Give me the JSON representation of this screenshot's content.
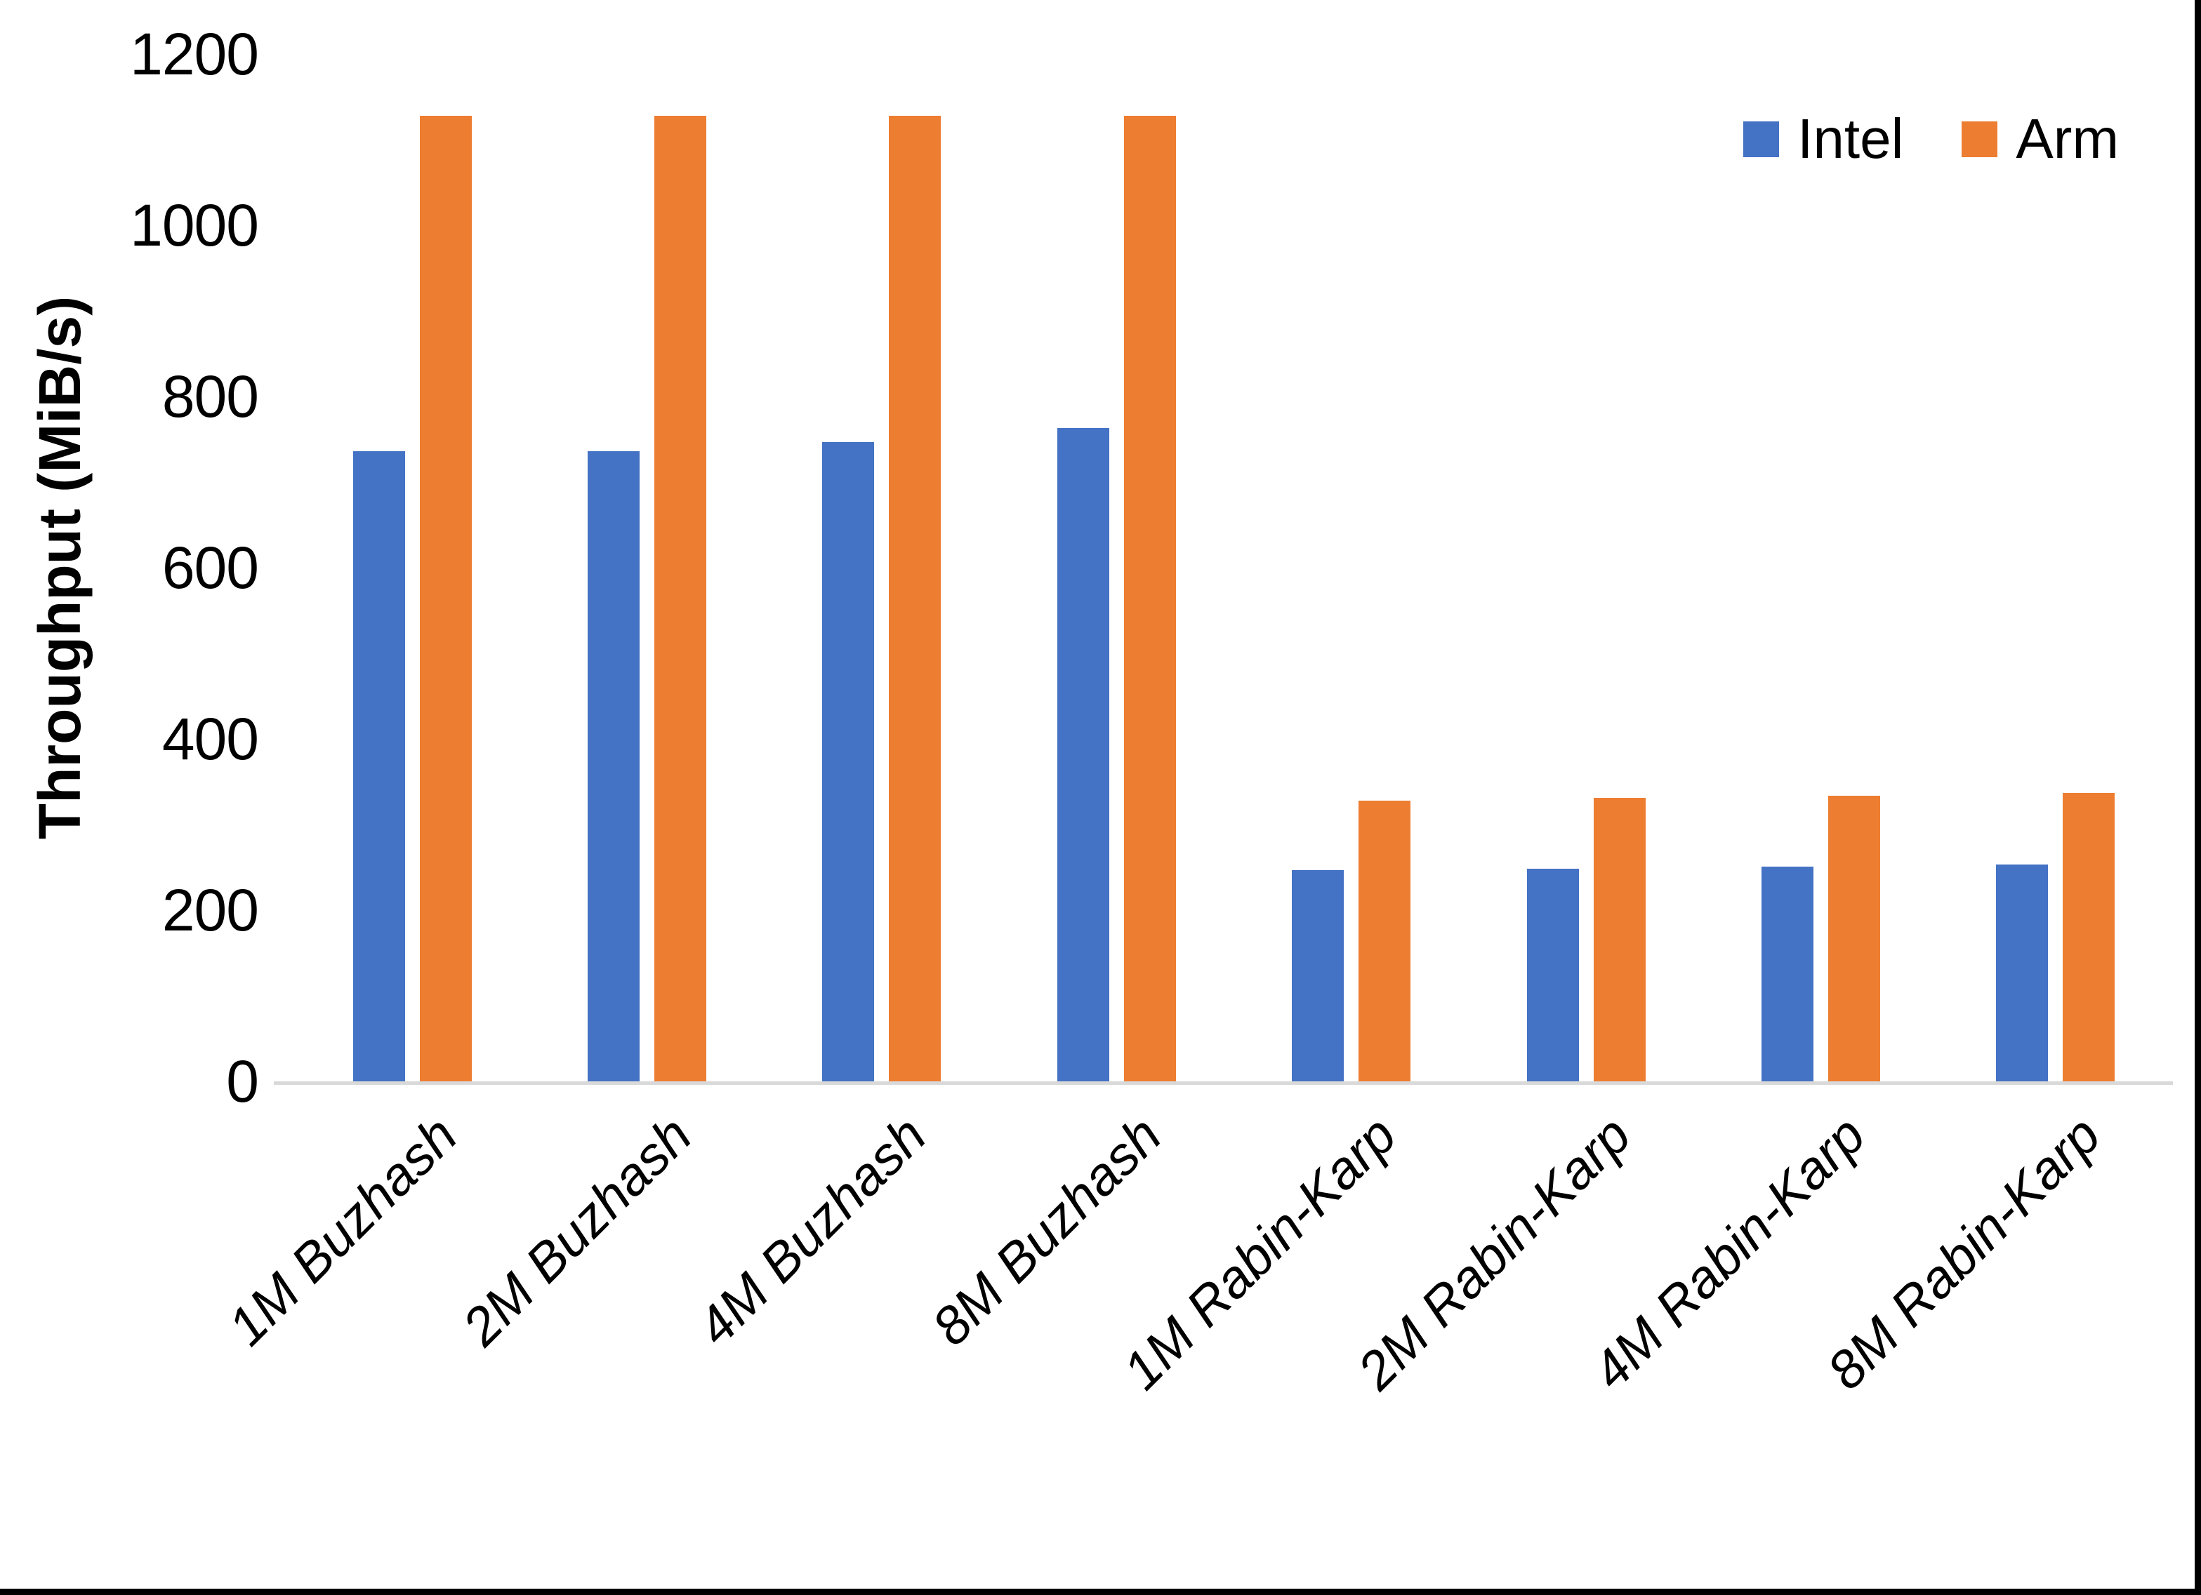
{
  "chart_data": {
    "type": "bar",
    "title": "",
    "xlabel": "",
    "ylabel": "Throughput (MiB/s)",
    "categories": [
      "1M Buzhash",
      "2M Buzhash",
      "4M Buzhash",
      "8M Buzhash",
      "1M Rabin-Karp",
      "2M Rabin-Karp",
      "4M Rabin-Karp",
      "8M Rabin-Karp"
    ],
    "series": [
      {
        "name": "Intel",
        "color": "#4472C4",
        "values": [
          736,
          736,
          747,
          763,
          247,
          248,
          251,
          253
        ]
      },
      {
        "name": "Arm",
        "color": "#ED7D31",
        "values": [
          1128,
          1128,
          1128,
          1128,
          328,
          331,
          334,
          337
        ]
      }
    ],
    "ylim": [
      0,
      1200
    ],
    "yticks": [
      0,
      200,
      400,
      600,
      800,
      1000,
      1200
    ],
    "grid": false,
    "legend_position": "top-right",
    "axis_line_color": "#D9D9D9",
    "text_color": "#000000"
  }
}
